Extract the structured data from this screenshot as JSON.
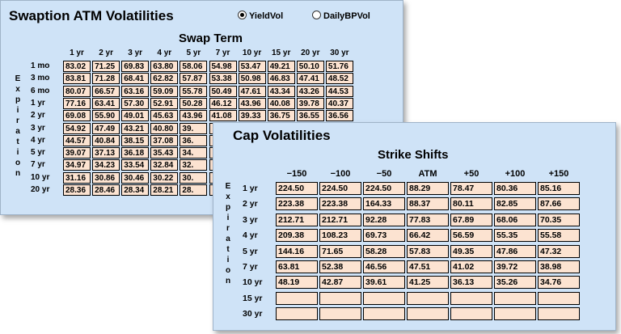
{
  "swaption": {
    "title": "Swaption ATM Volatilities",
    "options": [
      {
        "label": "YieldVol",
        "selected": true
      },
      {
        "label": "DailyBPVol",
        "selected": false
      }
    ],
    "subtitle": "Swap Term",
    "side_label": "Expiration",
    "columns": [
      "1 yr",
      "2 yr",
      "3 yr",
      "4 yr",
      "5 yr",
      "7 yr",
      "10 yr",
      "15 yr",
      "20 yr",
      "30 yr"
    ],
    "rows": [
      {
        "label": "1 mo",
        "values": [
          "83.02",
          "71.25",
          "69.83",
          "63.80",
          "58.06",
          "54.98",
          "53.47",
          "49.21",
          "50.10",
          "51.76"
        ]
      },
      {
        "label": "3 mo",
        "values": [
          "83.81",
          "71.28",
          "68.41",
          "62.82",
          "57.87",
          "53.38",
          "50.98",
          "46.83",
          "47.41",
          "48.52"
        ]
      },
      {
        "label": "6 mo",
        "values": [
          "80.07",
          "66.57",
          "63.16",
          "59.09",
          "55.78",
          "50.49",
          "47.61",
          "43.34",
          "43.26",
          "44.53"
        ]
      },
      {
        "label": "1 yr",
        "values": [
          "77.16",
          "63.41",
          "57.30",
          "52.91",
          "50.28",
          "46.12",
          "43.96",
          "40.08",
          "39.78",
          "40.37"
        ]
      },
      {
        "label": "2 yr",
        "values": [
          "69.08",
          "55.90",
          "49.01",
          "45.63",
          "43.96",
          "41.08",
          "39.33",
          "36.75",
          "36.55",
          "36.56"
        ]
      },
      {
        "label": "3 yr",
        "values": [
          "54.92",
          "47.49",
          "43.21",
          "40.80",
          "39.",
          "",
          "",
          "",
          "",
          ""
        ]
      },
      {
        "label": "4 yr",
        "values": [
          "44.57",
          "40.84",
          "38.15",
          "37.08",
          "36.",
          "",
          "",
          "",
          "",
          ""
        ]
      },
      {
        "label": "5 yr",
        "values": [
          "39.07",
          "37.13",
          "36.18",
          "35.43",
          "34.",
          "",
          "",
          "",
          "",
          ""
        ]
      },
      {
        "label": "7 yr",
        "values": [
          "34.97",
          "34.23",
          "33.54",
          "32.84",
          "32.",
          "",
          "",
          "",
          "",
          ""
        ]
      },
      {
        "label": "10 yr",
        "values": [
          "31.16",
          "30.86",
          "30.46",
          "30.22",
          "30.",
          "",
          "",
          "",
          "",
          ""
        ]
      },
      {
        "label": "20 yr",
        "values": [
          "28.36",
          "28.46",
          "28.34",
          "28.21",
          "28.",
          "",
          "",
          "",
          "",
          ""
        ]
      }
    ]
  },
  "cap": {
    "title": "Cap Volatilities",
    "subtitle": "Strike Shifts",
    "side_label": "Expiration",
    "columns": [
      "−150",
      "−100",
      "−50",
      "ATM",
      "+50",
      "+100",
      "+150"
    ],
    "rows": [
      {
        "label": "1 yr",
        "values": [
          "224.50",
          "224.50",
          "224.50",
          "88.29",
          "78.47",
          "80.36",
          "85.16"
        ]
      },
      {
        "label": "2 yr",
        "values": [
          "223.38",
          "223.38",
          "164.33",
          "88.37",
          "80.11",
          "82.85",
          "87.66"
        ]
      },
      {
        "label": "3 yr",
        "values": [
          "212.71",
          "212.71",
          "92.28",
          "77.83",
          "67.89",
          "68.06",
          "70.35"
        ]
      },
      {
        "label": "4 yr",
        "values": [
          "209.38",
          "108.23",
          "69.73",
          "66.42",
          "56.59",
          "55.35",
          "55.58"
        ]
      },
      {
        "label": "5 yr",
        "values": [
          "144.16",
          "71.65",
          "58.28",
          "57.83",
          "49.35",
          "47.86",
          "47.32"
        ]
      },
      {
        "label": "7 yr",
        "values": [
          "63.81",
          "52.38",
          "46.56",
          "47.51",
          "41.02",
          "39.72",
          "38.98"
        ]
      },
      {
        "label": "10 yr",
        "values": [
          "48.19",
          "42.87",
          "39.61",
          "41.25",
          "36.13",
          "35.26",
          "34.76"
        ]
      },
      {
        "label": "15 yr",
        "values": [
          "",
          "",
          "",
          "",
          "",
          "",
          ""
        ]
      },
      {
        "label": "30 yr",
        "values": [
          "",
          "",
          "",
          "",
          "",
          "",
          ""
        ]
      }
    ]
  }
}
